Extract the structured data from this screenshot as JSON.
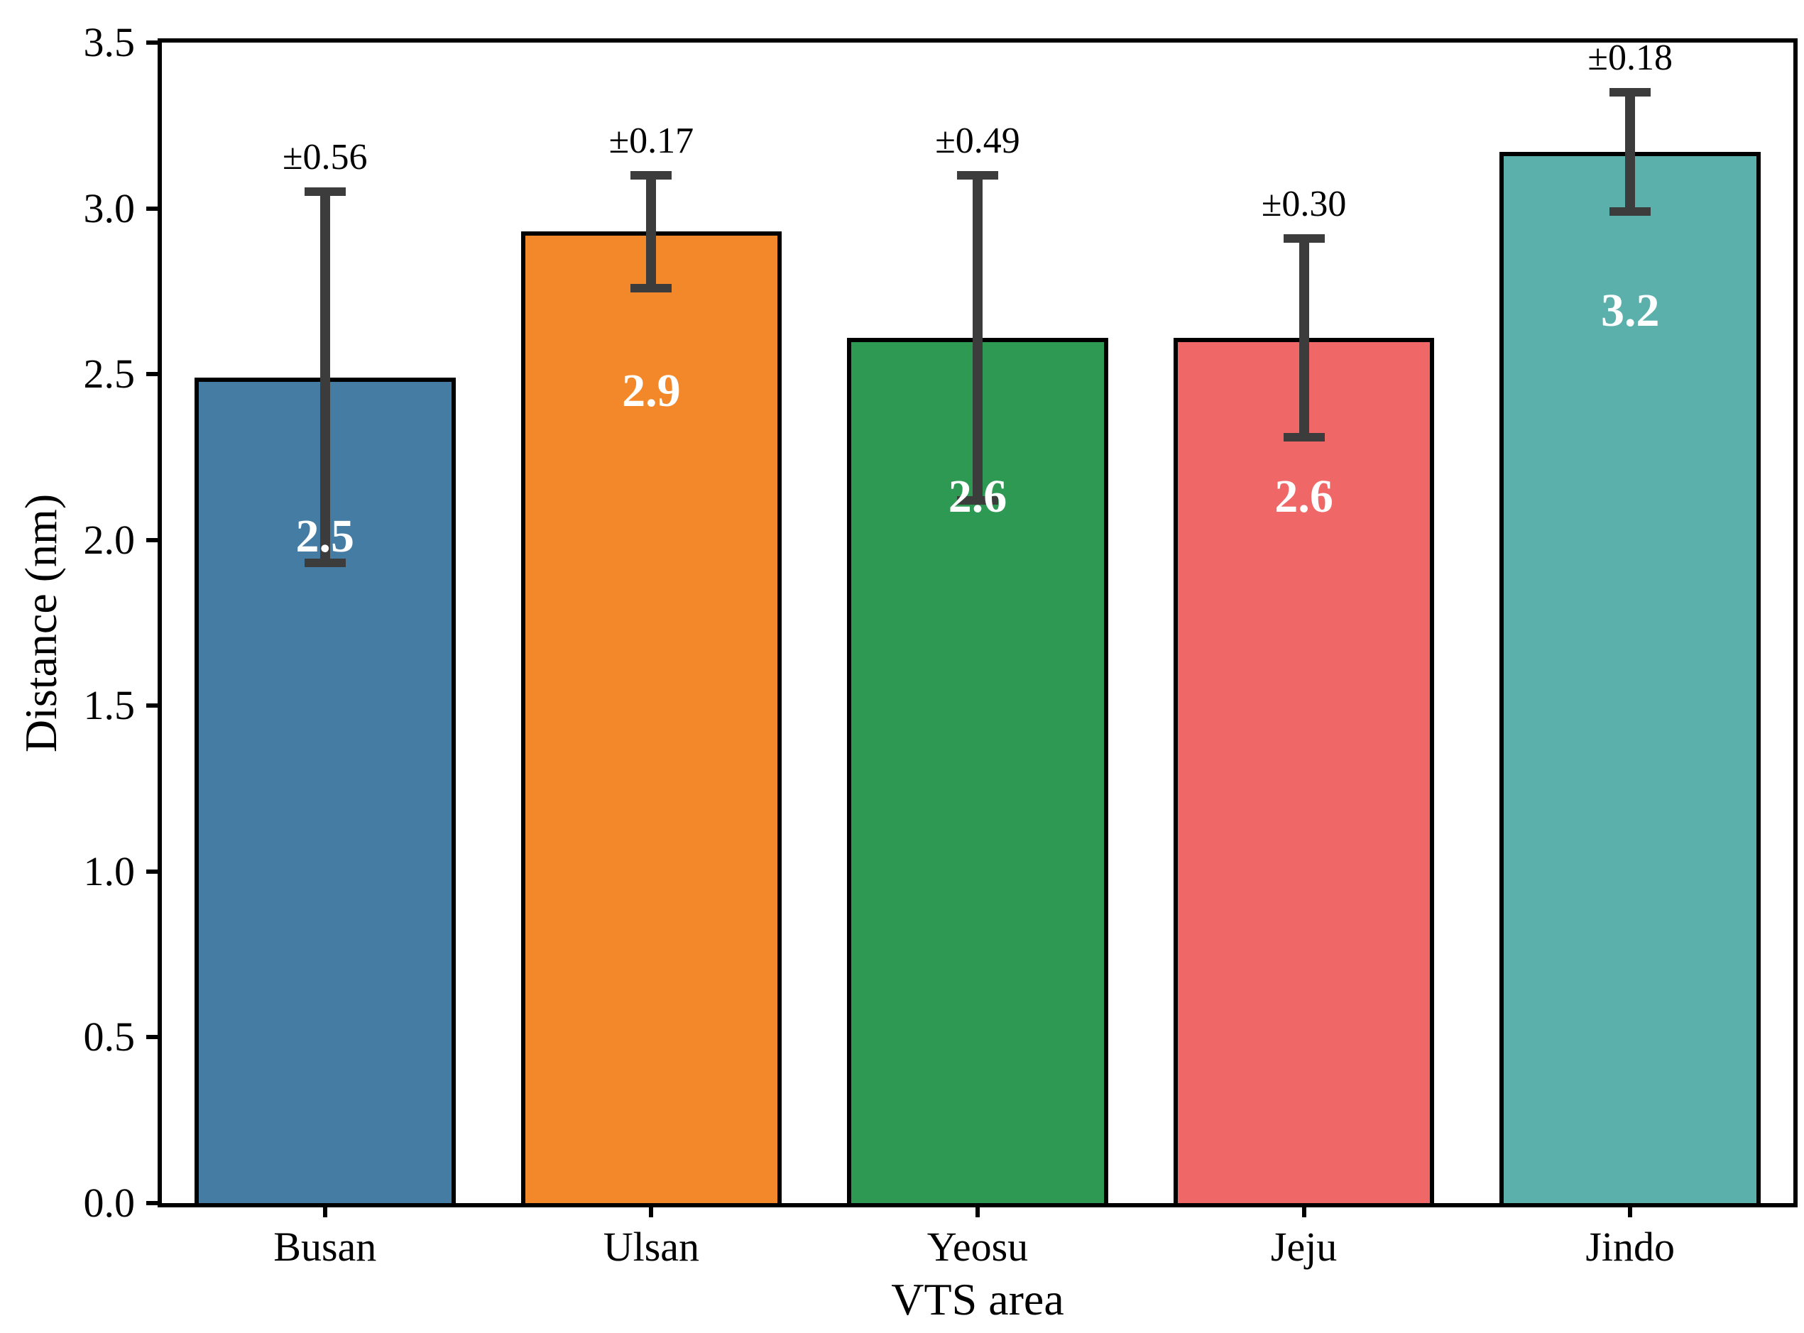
{
  "figure": {
    "background": "#ffffff",
    "text_color": "#000000"
  },
  "chart_data": {
    "type": "bar",
    "categories": [
      "Busan",
      "Ulsan",
      "Yeosu",
      "Jeju",
      "Jindo"
    ],
    "values": [
      2.49,
      2.93,
      2.61,
      2.61,
      3.17
    ],
    "value_labels": [
      "2.5",
      "2.9",
      "2.6",
      "2.6",
      "3.2"
    ],
    "errors": [
      0.56,
      0.17,
      0.49,
      0.3,
      0.18
    ],
    "error_labels": [
      "±0.56",
      "±0.17",
      "±0.49",
      "±0.30",
      "±0.18"
    ],
    "bar_colors": [
      "#447CA4",
      "#F3882A",
      "#2D9953",
      "#F06768",
      "#5CB0AB"
    ],
    "bar_edge_color": "#000000",
    "error_bar_color": "#3C3C3C",
    "value_label_color": "#FFFFFF",
    "xlabel": "VTS area",
    "ylabel": "Distance (nm)",
    "ylim": [
      0,
      3.5
    ],
    "yticks": [
      0.0,
      0.5,
      1.0,
      1.5,
      2.0,
      2.5,
      3.0,
      3.5
    ],
    "ytick_labels": [
      "0.0",
      "0.5",
      "1.0",
      "1.5",
      "2.0",
      "2.5",
      "3.0",
      "3.5"
    ],
    "grid": false,
    "legend": null,
    "bar_fraction": 0.8,
    "value_label_offset_units": 0.48
  }
}
